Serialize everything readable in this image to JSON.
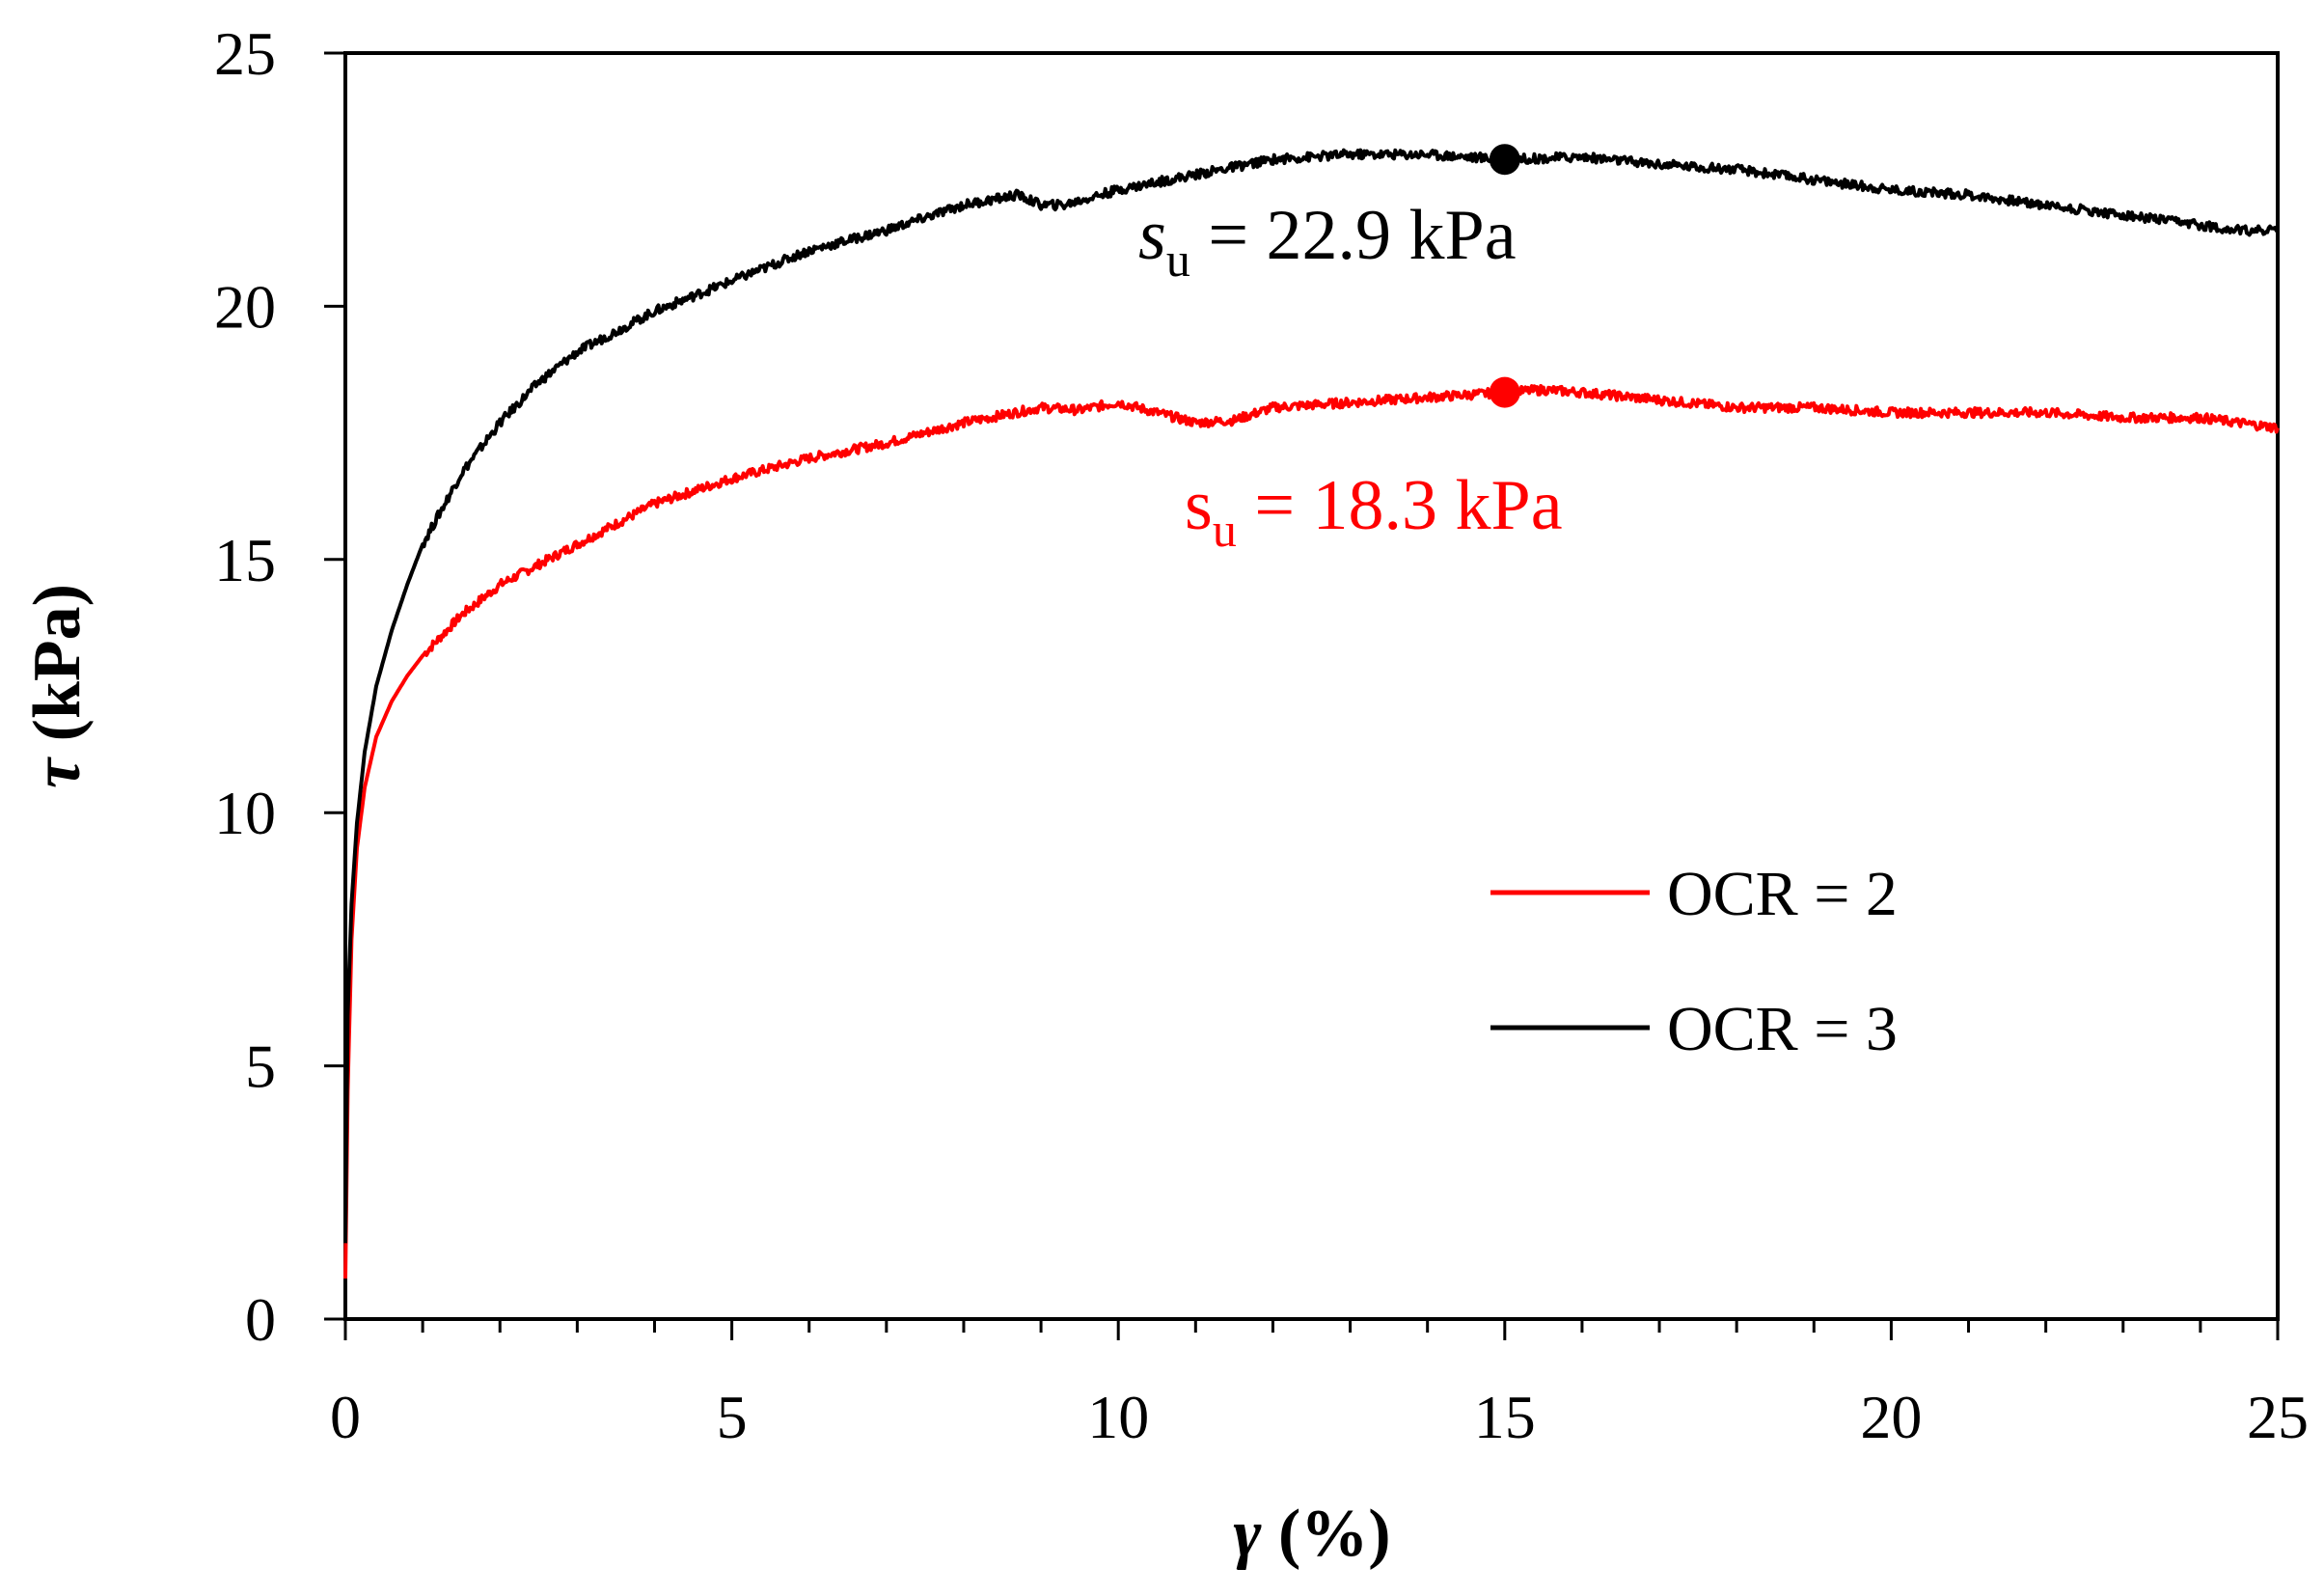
{
  "chart_data": {
    "type": "line",
    "title": "",
    "xlabel": {
      "symbol": "γ",
      "unit": " (%)"
    },
    "ylabel": {
      "symbol": "τ",
      "unit": " (kPa)"
    },
    "xlim": [
      0,
      25
    ],
    "ylim": [
      0,
      25
    ],
    "xticks": [
      "0",
      "5",
      "10",
      "15",
      "20",
      "25"
    ],
    "yticks": [
      "0",
      "5",
      "10",
      "15",
      "20",
      "25"
    ],
    "grid": false,
    "legend_position": "center-right",
    "series": [
      {
        "name": "OCR = 2",
        "color": "#ff0000",
        "x": [
          0,
          0.03,
          0.08,
          0.15,
          0.25,
          0.4,
          0.6,
          0.8,
          1.0,
          1.5,
          2.0,
          2.5,
          3.0,
          4.0,
          5.0,
          6.0,
          7.0,
          8.0,
          9.0,
          9.5,
          10.0,
          10.5,
          11.0,
          11.5,
          12.0,
          13.0,
          14.0,
          15.0,
          15.5,
          16.0,
          17.0,
          18.0,
          19.0,
          20.0,
          21.0,
          22.0,
          23.0,
          24.0,
          25.0
        ],
        "y": [
          0.8,
          4.5,
          7.5,
          9.3,
          10.5,
          11.5,
          12.2,
          12.7,
          13.1,
          13.9,
          14.5,
          14.9,
          15.3,
          16.1,
          16.6,
          17.0,
          17.3,
          17.7,
          18.0,
          17.95,
          18.1,
          17.9,
          17.7,
          17.75,
          18.0,
          18.1,
          18.2,
          18.3,
          18.35,
          18.3,
          18.15,
          18.0,
          18.0,
          17.9,
          17.9,
          17.9,
          17.8,
          17.8,
          17.6
        ]
      },
      {
        "name": "OCR = 3",
        "color": "#000000",
        "x": [
          0,
          0.03,
          0.08,
          0.15,
          0.25,
          0.4,
          0.6,
          0.8,
          1.0,
          1.5,
          2.0,
          2.5,
          3.0,
          4.0,
          5.0,
          6.0,
          7.0,
          8.0,
          8.7,
          9.0,
          9.3,
          10.0,
          11.0,
          12.0,
          13.0,
          14.0,
          15.0,
          16.0,
          17.0,
          18.0,
          19.0,
          20.0,
          21.0,
          22.0,
          23.0,
          24.0,
          24.5,
          25.0
        ],
        "y": [
          1.5,
          6.0,
          8.2,
          9.8,
          11.2,
          12.5,
          13.6,
          14.5,
          15.3,
          16.7,
          17.7,
          18.5,
          19.1,
          19.9,
          20.5,
          21.1,
          21.5,
          22.0,
          22.2,
          22.0,
          22.0,
          22.3,
          22.6,
          22.9,
          23.0,
          23.0,
          22.9,
          22.95,
          22.8,
          22.7,
          22.5,
          22.3,
          22.2,
          22.0,
          21.8,
          21.6,
          21.5,
          21.5
        ]
      }
    ],
    "peaks": [
      {
        "series": "OCR = 3",
        "x": 15,
        "y": 22.9,
        "color": "#000000",
        "label_symbol": "s",
        "label_sub": "u",
        "label_value": " = 22.9 kPa",
        "italic": true
      },
      {
        "series": "OCR = 2",
        "x": 15,
        "y": 18.3,
        "color": "#ff0000",
        "label_symbol": "s",
        "label_sub": "u",
        "label_value": " = 18.3 kPa",
        "italic": false
      }
    ]
  }
}
